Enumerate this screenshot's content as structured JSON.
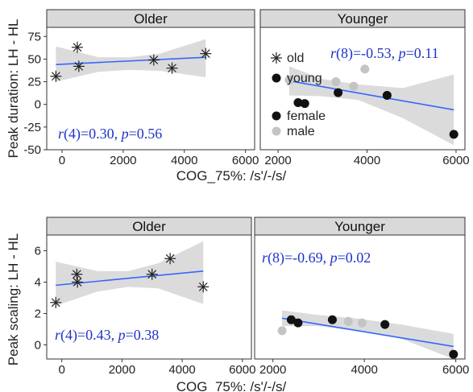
{
  "chart_data": [
    {
      "type": "scatter",
      "panel": "Older",
      "row": 1,
      "ylabel": "Peak duration: LH - HL",
      "xlabel": "COG_75%: /s'/-/s/",
      "xlim": [
        -500,
        6300
      ],
      "ylim": [
        -50,
        85
      ],
      "xticks": [
        0,
        2000,
        4000,
        6000
      ],
      "yticks": [
        -50,
        -25,
        0,
        25,
        50,
        75
      ],
      "annotation": {
        "r_label": "r",
        "r_value": "(4)=0.30, ",
        "p_label": "p",
        "p_value": "=0.56"
      },
      "points": [
        {
          "x": -200,
          "y": 31,
          "group": "old"
        },
        {
          "x": 500,
          "y": 63,
          "group": "old"
        },
        {
          "x": 550,
          "y": 42,
          "group": "old"
        },
        {
          "x": 3000,
          "y": 49,
          "group": "old"
        },
        {
          "x": 3600,
          "y": 40,
          "group": "old"
        },
        {
          "x": 4700,
          "y": 56,
          "group": "old"
        }
      ],
      "fit": {
        "x": [
          -200,
          4700
        ],
        "y": [
          44,
          52
        ]
      },
      "band": {
        "x": [
          -200,
          1200,
          2200,
          3200,
          4700
        ],
        "lower": [
          25,
          36,
          38,
          37,
          30
        ],
        "upper": [
          64,
          52,
          52,
          56,
          72
        ]
      }
    },
    {
      "type": "scatter",
      "panel": "Younger",
      "row": 1,
      "xlim": [
        1600,
        6200
      ],
      "ylim": [
        -50,
        85
      ],
      "xticks": [
        2000,
        4000,
        6000
      ],
      "annotation": {
        "r_label": "r",
        "r_value": "(8)=-0.53, ",
        "p_label": "p",
        "p_value": "=0.11"
      },
      "legend": [
        {
          "marker": "star",
          "label": "old"
        },
        {
          "marker": "dot-black",
          "label": "young"
        },
        {
          "marker": "dot-black",
          "label": "female"
        },
        {
          "marker": "dot-grey",
          "label": "male"
        }
      ],
      "points": [
        {
          "x": 2250,
          "y": 27,
          "group": "male"
        },
        {
          "x": 2450,
          "y": 2,
          "group": "female"
        },
        {
          "x": 2600,
          "y": 1,
          "group": "female"
        },
        {
          "x": 3300,
          "y": 25,
          "group": "male"
        },
        {
          "x": 3350,
          "y": 13,
          "group": "female"
        },
        {
          "x": 3700,
          "y": 20,
          "group": "male"
        },
        {
          "x": 3950,
          "y": 39,
          "group": "male"
        },
        {
          "x": 4450,
          "y": 10,
          "group": "female"
        },
        {
          "x": 5950,
          "y": -33,
          "group": "female"
        }
      ],
      "fit": {
        "x": [
          2250,
          5950
        ],
        "y": [
          26,
          -6
        ]
      },
      "band": {
        "x": [
          2250,
          3000,
          3800,
          4800,
          5950
        ],
        "lower": [
          10,
          9,
          5,
          -15,
          -45
        ],
        "upper": [
          42,
          28,
          22,
          18,
          33
        ]
      }
    },
    {
      "type": "scatter",
      "panel": "Older",
      "row": 2,
      "ylabel": "Peak scaling: LH - HL",
      "xlabel": "COG_75%: /s'/-/s/",
      "xlim": [
        -500,
        6300
      ],
      "ylim": [
        -0.9,
        7.0
      ],
      "xticks": [
        0,
        2000,
        4000,
        6000
      ],
      "yticks": [
        0,
        2,
        4,
        6
      ],
      "annotation": {
        "r_label": "r",
        "r_value": "(4)=0.43, ",
        "p_label": "p",
        "p_value": "=0.38"
      },
      "points": [
        {
          "x": -200,
          "y": 2.7,
          "group": "old"
        },
        {
          "x": 500,
          "y": 4.5,
          "group": "old"
        },
        {
          "x": 520,
          "y": 4.0,
          "group": "old"
        },
        {
          "x": 3000,
          "y": 4.5,
          "group": "old"
        },
        {
          "x": 3600,
          "y": 5.5,
          "group": "old"
        },
        {
          "x": 4700,
          "y": 3.7,
          "group": "old"
        }
      ],
      "fit": {
        "x": [
          -200,
          4700
        ],
        "y": [
          3.8,
          4.7
        ]
      },
      "band": {
        "x": [
          -200,
          1200,
          2200,
          3200,
          4700
        ],
        "lower": [
          2.5,
          3.4,
          3.7,
          3.6,
          2.6
        ],
        "upper": [
          5.3,
          4.7,
          4.7,
          5.2,
          6.6
        ]
      }
    },
    {
      "type": "scatter",
      "panel": "Younger",
      "row": 2,
      "xlim": [
        1600,
        6200
      ],
      "ylim": [
        -0.9,
        7.0
      ],
      "xticks": [
        2000,
        4000,
        6000
      ],
      "annotation": {
        "r_label": "r",
        "r_value": "(8)=-0.69, ",
        "p_label": "p",
        "p_value": "=0.02"
      },
      "points": [
        {
          "x": 2200,
          "y": 0.9,
          "group": "male"
        },
        {
          "x": 2400,
          "y": 1.6,
          "group": "female"
        },
        {
          "x": 2550,
          "y": 1.4,
          "group": "female"
        },
        {
          "x": 3300,
          "y": 1.6,
          "group": "female"
        },
        {
          "x": 3650,
          "y": 1.5,
          "group": "male"
        },
        {
          "x": 3950,
          "y": 1.4,
          "group": "male"
        },
        {
          "x": 4450,
          "y": 1.3,
          "group": "female"
        },
        {
          "x": 5950,
          "y": -0.6,
          "group": "female"
        }
      ],
      "fit": {
        "x": [
          2200,
          5950
        ],
        "y": [
          1.7,
          -0.1
        ]
      },
      "band": {
        "x": [
          2200,
          3000,
          3800,
          4800,
          5950
        ],
        "lower": [
          1.2,
          1.2,
          0.9,
          0.4,
          -0.9
        ],
        "upper": [
          2.2,
          1.9,
          1.7,
          1.3,
          0.7
        ]
      }
    }
  ]
}
